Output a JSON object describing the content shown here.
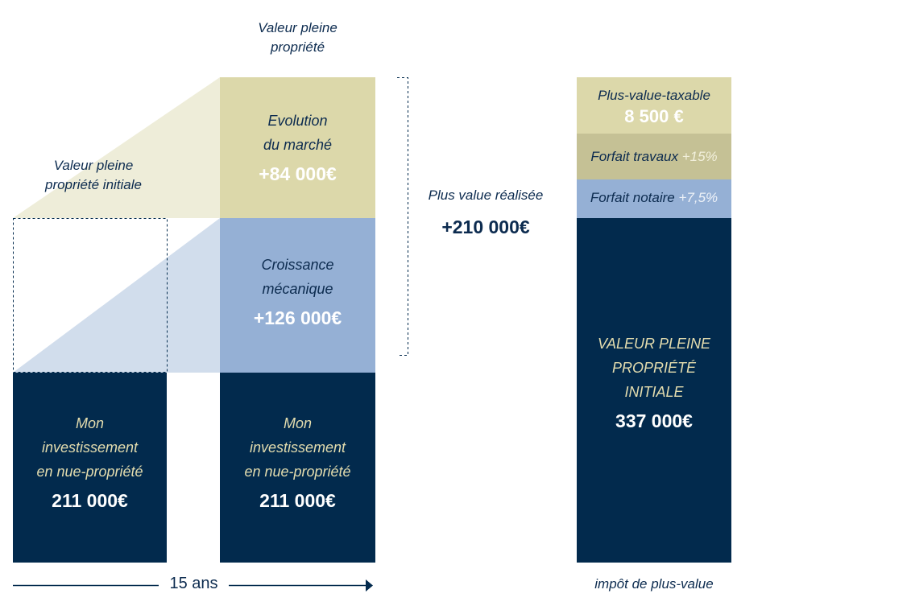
{
  "top_caption": {
    "line1": "Valeur pleine",
    "line2": "propriété"
  },
  "left_caption": {
    "line1": "Valeur pleine",
    "line2": "propriété initiale"
  },
  "left_block": {
    "line1": "Mon",
    "line2": "investissement",
    "line3": "en nue-propriété",
    "value": "211 000€"
  },
  "mid_market": {
    "line1": "Evolution",
    "line2": "du marché",
    "value": "+84 000€"
  },
  "mid_growth": {
    "line1": "Croissance",
    "line2": "mécanique",
    "value": "+126 000€"
  },
  "mid_block": {
    "line1": "Mon",
    "line2": "investissement",
    "line3": "en nue-propriété",
    "value": "211 000€"
  },
  "plus_value": {
    "label": "Plus value réalisée",
    "value": "+210 000€"
  },
  "right_col": {
    "taxable_label": "Plus-value-taxable",
    "taxable_value": "8 500 €",
    "travaux_label": "Forfait travaux",
    "travaux_pct": "+15%",
    "notaire_label": "Forfait notaire",
    "notaire_pct": "+7,5%",
    "base_line1": "VALEUR PLEINE",
    "base_line2": "PROPRIÉTÉ",
    "base_line3": "INITIALE",
    "base_value": "337 000€"
  },
  "timeline": {
    "label": "15 ans"
  },
  "bottom_caption": "impôt de plus-value",
  "colors": {
    "navy": "#022a4d",
    "olive": "#dcd8aa",
    "olive_dark": "#c5c195",
    "blue": "#95b0d5",
    "light_olive": "#eeedd9",
    "light_blue": "#d1ddec"
  }
}
